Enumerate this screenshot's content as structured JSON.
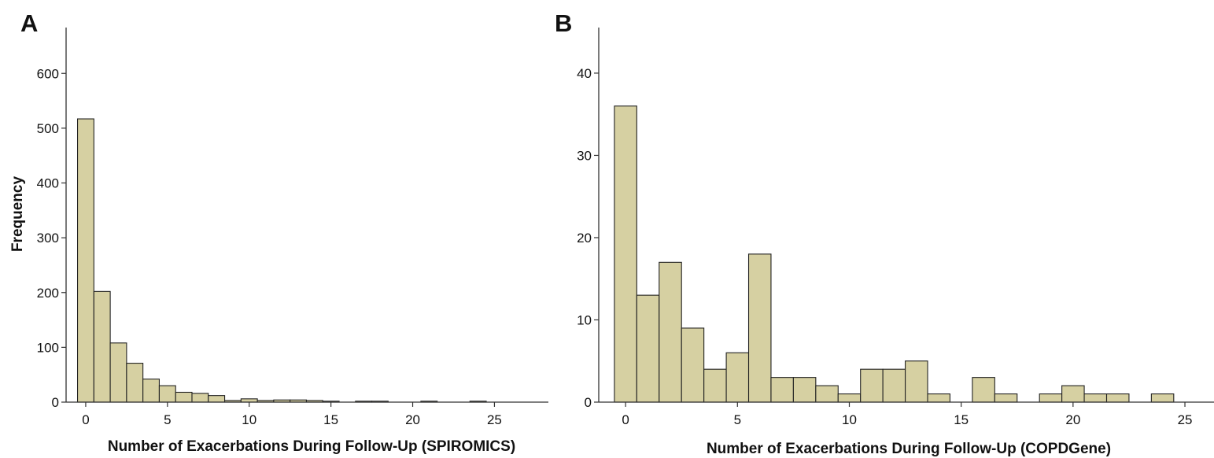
{
  "colors": {
    "bar_fill": "#d6d0a2",
    "bar_stroke": "#222222",
    "axis": "#333333",
    "text": "#111111"
  },
  "chart_data": [
    {
      "panel_label": "A",
      "type": "bar",
      "subtype": "histogram",
      "xlabel": "Number of Exacerbations During Follow-Up (SPIROMICS)",
      "ylabel": "Frequency",
      "xlim": [
        -1.2,
        28.3
      ],
      "ylim": [
        0,
        665
      ],
      "xticks": [
        0,
        5,
        10,
        15,
        20,
        25
      ],
      "yticks": [
        0,
        100,
        200,
        300,
        400,
        500,
        600
      ],
      "bins": [
        {
          "x": 0,
          "y": 517
        },
        {
          "x": 1,
          "y": 202
        },
        {
          "x": 2,
          "y": 108
        },
        {
          "x": 3,
          "y": 71
        },
        {
          "x": 4,
          "y": 42
        },
        {
          "x": 5,
          "y": 30
        },
        {
          "x": 6,
          "y": 18
        },
        {
          "x": 7,
          "y": 16
        },
        {
          "x": 8,
          "y": 12
        },
        {
          "x": 9,
          "y": 3
        },
        {
          "x": 10,
          "y": 6
        },
        {
          "x": 11,
          "y": 3
        },
        {
          "x": 12,
          "y": 4
        },
        {
          "x": 13,
          "y": 4
        },
        {
          "x": 14,
          "y": 3
        },
        {
          "x": 15,
          "y": 1
        },
        {
          "x": 17,
          "y": 1
        },
        {
          "x": 18,
          "y": 1
        },
        {
          "x": 21,
          "y": 1
        },
        {
          "x": 24,
          "y": 1
        }
      ]
    },
    {
      "panel_label": "B",
      "type": "bar",
      "subtype": "histogram",
      "xlabel": "Number of Exacerbations During Follow-Up (COPDGene)",
      "ylabel": "",
      "xlim": [
        -1.2,
        26.3
      ],
      "ylim": [
        0,
        44.3
      ],
      "xticks": [
        0,
        5,
        10,
        15,
        20,
        25
      ],
      "yticks": [
        0,
        10,
        20,
        30,
        40
      ],
      "bins": [
        {
          "x": 0,
          "y": 36
        },
        {
          "x": 1,
          "y": 13
        },
        {
          "x": 2,
          "y": 17
        },
        {
          "x": 3,
          "y": 9
        },
        {
          "x": 4,
          "y": 4
        },
        {
          "x": 5,
          "y": 6
        },
        {
          "x": 6,
          "y": 18
        },
        {
          "x": 7,
          "y": 3
        },
        {
          "x": 8,
          "y": 3
        },
        {
          "x": 9,
          "y": 2
        },
        {
          "x": 10,
          "y": 1
        },
        {
          "x": 11,
          "y": 4
        },
        {
          "x": 12,
          "y": 4
        },
        {
          "x": 13,
          "y": 5
        },
        {
          "x": 14,
          "y": 1
        },
        {
          "x": 16,
          "y": 3
        },
        {
          "x": 17,
          "y": 1
        },
        {
          "x": 19,
          "y": 1
        },
        {
          "x": 20,
          "y": 2
        },
        {
          "x": 21,
          "y": 1
        },
        {
          "x": 22,
          "y": 1
        },
        {
          "x": 24,
          "y": 1
        }
      ]
    }
  ]
}
